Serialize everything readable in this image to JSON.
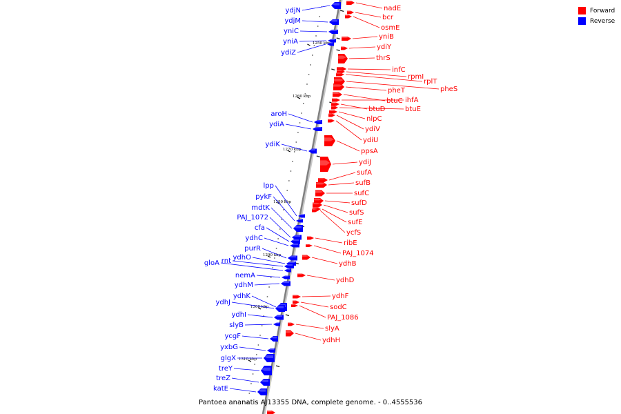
{
  "caption": "Pantoea ananatis AJ13355 DNA, complete genome. - 0..4555536",
  "legend": [
    {
      "name": "Forward",
      "color": "#ff0000"
    },
    {
      "name": "Reverse",
      "color": "#0000ff"
    }
  ],
  "colors": {
    "forward": "#ff0000",
    "reverse": "#0000ff",
    "backbone": "#808080"
  },
  "kbp_ticks": [
    "1250 kbp",
    "1260 kbp",
    "1270 kbp",
    "1280 kbp",
    "1290 kbp",
    "1300 kbp",
    "1310 kbp"
  ],
  "forward_genes": [
    "nadE",
    "bcr",
    "osmE",
    "yniB",
    "ydiY",
    "thrS",
    "infC",
    "rpmI",
    "rplT",
    "pheS",
    "pheT",
    "btuC",
    "ihfA",
    "btuD",
    "btuE",
    "nlpC",
    "ydiV",
    "ydiU",
    "ppsA",
    "ydiJ",
    "sufA",
    "sufB",
    "sufC",
    "sufD",
    "sufS",
    "sufE",
    "ycfS",
    "ribE",
    "PAJ_1074",
    "ydhB",
    "ydhD",
    "ydhF",
    "sodC",
    "PAJ_1086",
    "slyA",
    "ydhH"
  ],
  "reverse_genes": [
    "ydjN",
    "ydjM",
    "yniC",
    "yniA",
    "ydiZ",
    "aroH",
    "ydiA",
    "ydiK",
    "lpp",
    "pykF",
    "mdtK",
    "PAJ_1072",
    "cfa",
    "ydhC",
    "purR",
    "ydhO",
    "rnt",
    "gloA",
    "nemA",
    "ydhM",
    "ydhK",
    "ydhJ",
    "ydhI",
    "slyB",
    "ycgF",
    "yxbG",
    "glgX",
    "treY",
    "treZ",
    "katE"
  ]
}
